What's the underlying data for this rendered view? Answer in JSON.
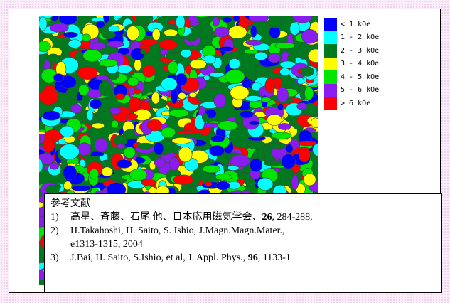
{
  "legend": {
    "items": [
      {
        "label": "< 1 kOe",
        "color": "#0000ff"
      },
      {
        "label": "1 - 2 kOe",
        "color": "#00ffff"
      },
      {
        "label": "2 - 3 kOe",
        "color": "#007a1e"
      },
      {
        "label": "3 - 4 kOe",
        "color": "#ffff00"
      },
      {
        "label": "4 - 5 kOe",
        "color": "#00e600"
      },
      {
        "label": "5 - 6 kOe",
        "color": "#8a1cf0"
      },
      {
        "label": "> 6 kOe",
        "color": "#ff0000"
      }
    ]
  },
  "references": {
    "heading": "参考文献",
    "items": [
      {
        "num": "1)",
        "before": "高星、斉藤、石尾 他、日本応用磁気学会、",
        "bold": "26",
        "after": ", 284-288,"
      },
      {
        "num": "2)",
        "before": "H.Takahoshi, H. Saito, S. Ishio, J.Magn.Magn.Mater., ",
        "bold": "",
        "after": "",
        "line2": "e1313-1315, 2004"
      },
      {
        "num": "3)",
        "before": "J.Bai, H. Saito, S.Ishio, et al, J. Appl. Phys., ",
        "bold": "96",
        "after": ", 1133-1"
      }
    ]
  }
}
